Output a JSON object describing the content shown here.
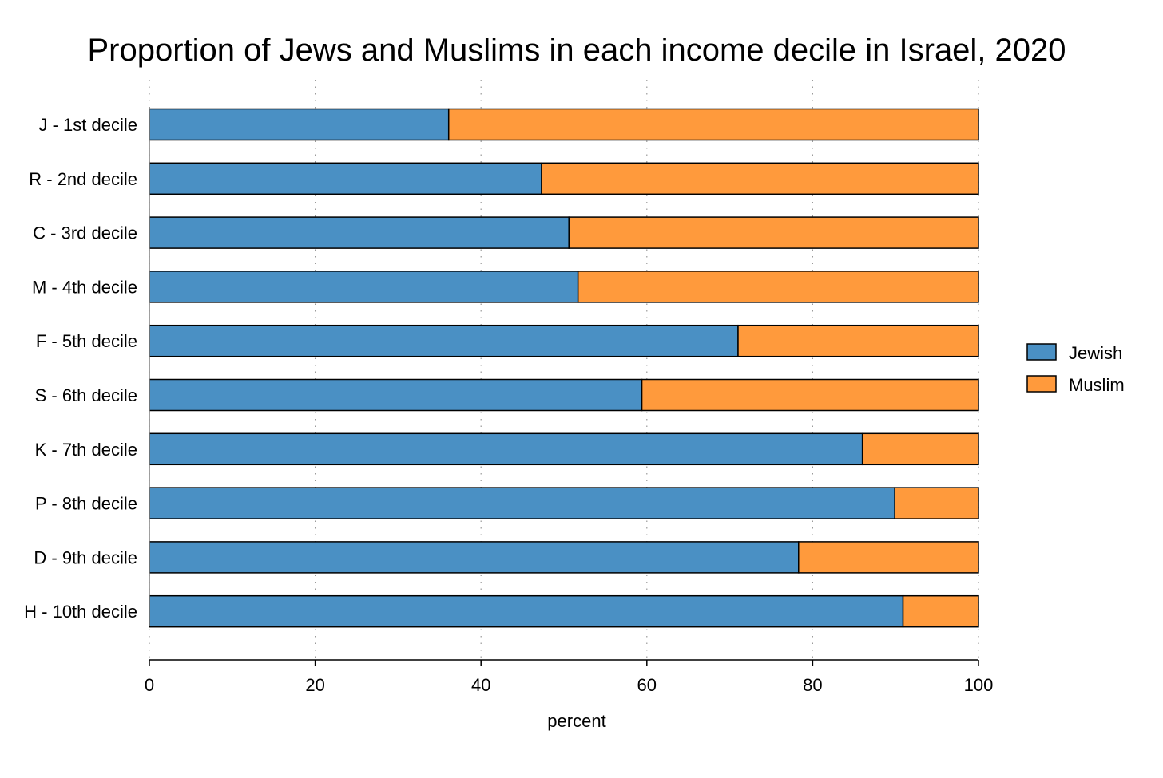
{
  "chart_data": {
    "type": "bar",
    "orientation": "horizontal",
    "stacked": true,
    "title": "Proportion of Jews and Muslims in each income decile in Israel, 2020",
    "xlabel": "percent",
    "ylabel": "",
    "xlim": [
      0,
      100
    ],
    "xticks": [
      0,
      20,
      40,
      60,
      80,
      100
    ],
    "grid": "vertical dotted",
    "legend_position": "right",
    "categories": [
      "J - 1st decile",
      "R - 2nd decile",
      "C - 3rd decile",
      "M - 4th decile",
      "F - 5th decile",
      "S - 6th decile",
      "K - 7th decile",
      "P - 8th decile",
      "D - 9th decile",
      "H - 10th decile"
    ],
    "series": [
      {
        "name": "Jewish",
        "color": "#4a90c4",
        "values": [
          36.1,
          47.3,
          50.6,
          51.7,
          71.0,
          59.4,
          86.0,
          89.9,
          78.3,
          90.9
        ]
      },
      {
        "name": "Muslim",
        "color": "#ff9a3c",
        "values": [
          63.9,
          52.7,
          49.4,
          48.3,
          29.0,
          40.6,
          14.0,
          10.1,
          21.7,
          9.1
        ]
      }
    ]
  }
}
